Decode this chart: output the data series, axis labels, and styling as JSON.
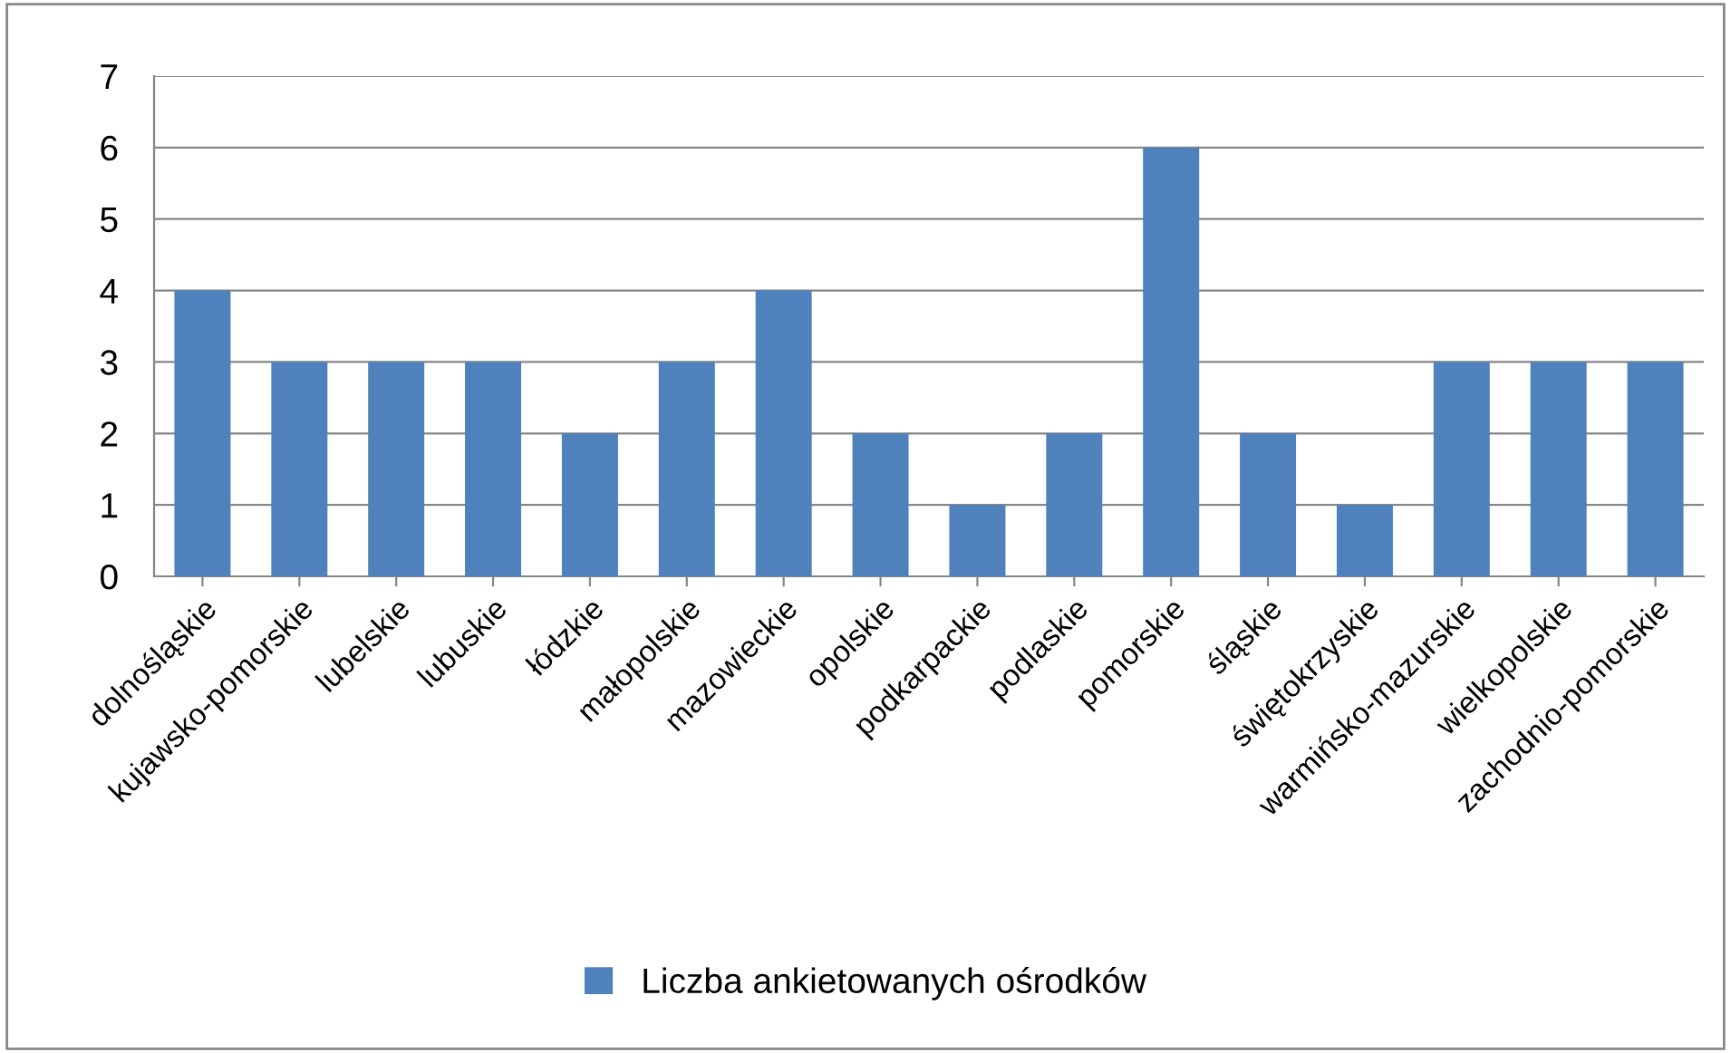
{
  "chart_data": {
    "type": "bar",
    "categories": [
      "dolnośląskie",
      "kujawsko-pomorskie",
      "lubelskie",
      "lubuskie",
      "łódzkie",
      "małopolskie",
      "mazowieckie",
      "opolskie",
      "podkarpackie",
      "podlaskie",
      "pomorskie",
      "śląskie",
      "świętokrzyskie",
      "warmińsko-mazurskie",
      "wielkopolskie",
      "zachodnio-pomorskie"
    ],
    "series": [
      {
        "name": "Liczba ankietowanych ośrodków",
        "color": "#4f81bd",
        "values": [
          4,
          3,
          3,
          3,
          2,
          3,
          4,
          2,
          1,
          2,
          6,
          2,
          1,
          3,
          3,
          3
        ]
      }
    ],
    "ylim": [
      0,
      7
    ],
    "yticks": [
      0,
      1,
      2,
      3,
      4,
      5,
      6,
      7
    ],
    "grid": "y",
    "legend": "bottom"
  }
}
